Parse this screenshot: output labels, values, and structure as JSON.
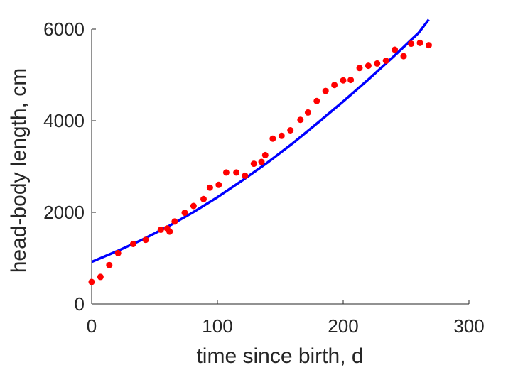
{
  "chart_data": {
    "type": "scatter",
    "xlabel": "time since birth, d",
    "ylabel": "head-body length, cm",
    "xlim": [
      0,
      300
    ],
    "ylim": [
      0,
      6000
    ],
    "xticks": [
      0,
      100,
      200,
      300
    ],
    "yticks": [
      0,
      2000,
      4000,
      6000
    ],
    "xtick_labels": [
      "0",
      "100",
      "200",
      "300"
    ],
    "ytick_labels": [
      "0",
      "2000",
      "4000",
      "6000"
    ],
    "grid": false,
    "series": [
      {
        "kind": "points",
        "color": "#ff0000",
        "x": [
          0,
          7,
          14,
          21,
          33,
          43,
          55,
          60,
          62,
          66,
          74,
          81,
          89,
          94,
          101,
          107,
          115,
          122,
          129,
          135,
          138,
          144,
          151,
          158,
          166,
          172,
          179,
          186,
          193,
          200,
          206,
          213,
          220,
          227,
          234,
          241,
          248,
          254,
          261,
          268
        ],
        "y": [
          480,
          590,
          850,
          1110,
          1310,
          1400,
          1620,
          1650,
          1580,
          1800,
          1990,
          2140,
          2290,
          2540,
          2600,
          2870,
          2870,
          2800,
          3060,
          3100,
          3250,
          3610,
          3670,
          3790,
          4020,
          4180,
          4430,
          4650,
          4780,
          4880,
          4890,
          5150,
          5200,
          5250,
          5310,
          5550,
          5410,
          5680,
          5700,
          5650
        ]
      },
      {
        "kind": "line",
        "color": "#0000ff",
        "x": [
          0,
          20,
          40,
          60,
          80,
          100,
          120,
          140,
          160,
          180,
          200,
          220,
          240,
          260,
          268
        ],
        "y": [
          920,
          1150,
          1400,
          1680,
          1990,
          2330,
          2700,
          3090,
          3510,
          3960,
          4420,
          4900,
          5400,
          5920,
          6210
        ]
      }
    ]
  }
}
